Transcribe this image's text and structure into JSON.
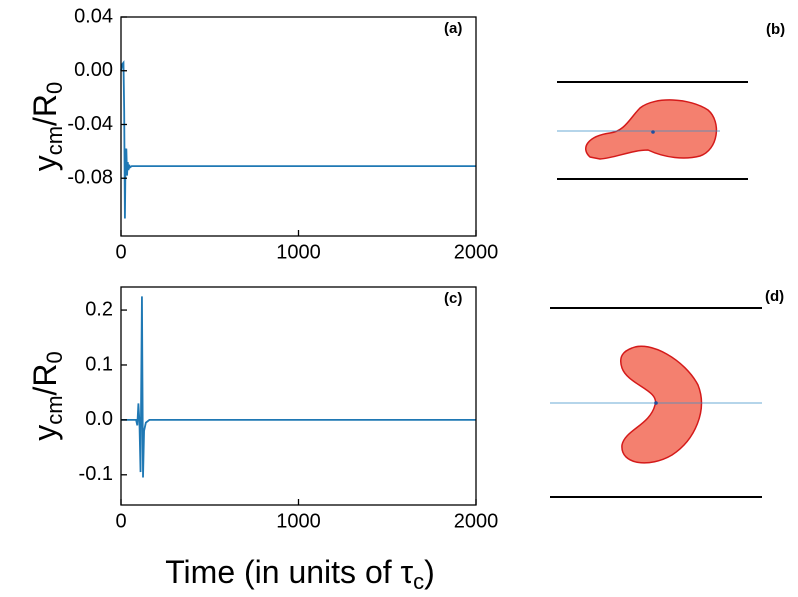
{
  "chart_data": [
    {
      "type": "line",
      "panel_label": "(a)",
      "ylabel": [
        "y",
        "cm",
        "/R",
        "0"
      ],
      "x": [
        0,
        8,
        14,
        18,
        22,
        26,
        30,
        34,
        38,
        42,
        46,
        50,
        60,
        80,
        2000
      ],
      "values": [
        0,
        0.005,
        0.006,
        -0.03,
        -0.11,
        -0.06,
        -0.058,
        -0.078,
        -0.068,
        -0.074,
        -0.07,
        -0.072,
        -0.071,
        -0.071,
        -0.071
      ],
      "color": "#1f78b4",
      "xlim": [
        0,
        2000
      ],
      "xticks": [
        0,
        1000,
        2000
      ],
      "ylim": [
        -0.123,
        0.04
      ],
      "yticks": [
        0.04,
        {
          "value": 0,
          "label": "0.00"
        },
        -0.04,
        -0.08
      ]
    },
    {
      "type": "line",
      "panel_label": "(c)",
      "ylabel": [
        "y",
        "cm",
        "/R",
        "0"
      ],
      "x": [
        0,
        85,
        92,
        98,
        104,
        110,
        118,
        124,
        130,
        140,
        160,
        2000
      ],
      "values": [
        0,
        0,
        -0.01,
        0.03,
        -0.005,
        -0.095,
        0.225,
        -0.105,
        -0.02,
        -0.005,
        0,
        0
      ],
      "color": "#1f78b4",
      "xlim": [
        0,
        2000
      ],
      "xticks": [
        0,
        1000,
        2000
      ],
      "ylim": [
        -0.155,
        0.242
      ],
      "yticks": [
        0.2,
        0.1,
        {
          "value": 0,
          "label": "0.0"
        },
        -0.1
      ]
    }
  ],
  "xlabel": [
    "Time (in units of τ",
    "c",
    ")"
  ],
  "diagrams": [
    {
      "panel_label": "(b)"
    },
    {
      "panel_label": "(d)"
    }
  ]
}
